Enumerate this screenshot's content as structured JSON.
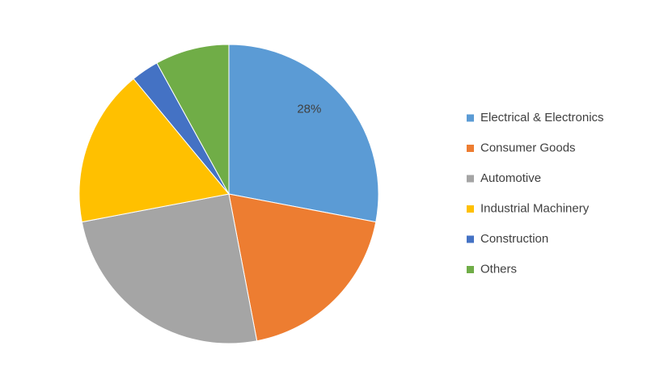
{
  "chart_data": {
    "type": "pie",
    "categories": [
      "Electrical & Electronics",
      "Consumer Goods",
      "Automotive",
      "Industrial Machinery",
      "Construction",
      "Others"
    ],
    "values": [
      28,
      19,
      25,
      17,
      3,
      8
    ],
    "value_labels": [
      "28%",
      null,
      null,
      null,
      null,
      null
    ],
    "colors": [
      "#5b9bd5",
      "#ed7d31",
      "#a5a5a5",
      "#ffc000",
      "#4472c4",
      "#70ad47"
    ],
    "legend": "right"
  }
}
